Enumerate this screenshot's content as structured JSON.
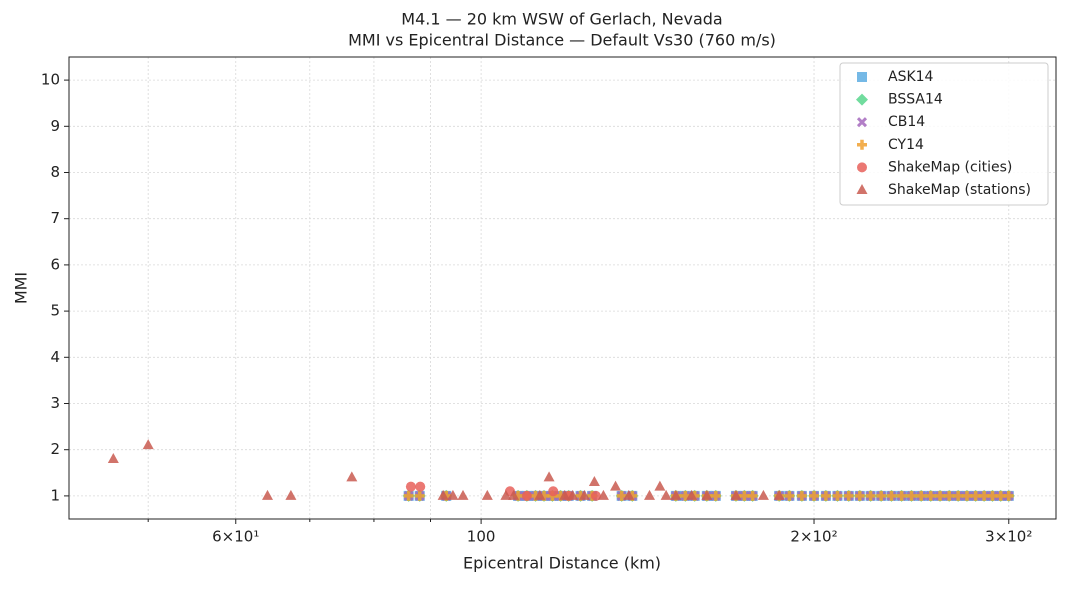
{
  "chart_data": {
    "type": "scatter",
    "title": "M4.1 — 20 km WSW of Gerlach, Nevada",
    "subtitle": "MMI vs Epicentral Distance — Default Vs30 (760 m/s)",
    "x_label": "Epicentral Distance (km)",
    "y_label": "MMI",
    "x_log": true,
    "grid": true,
    "legend": "upper right",
    "xlim": [
      42.4,
      331
    ],
    "ylim": [
      0.5,
      10.5
    ],
    "xticks": [
      {
        "value": 60,
        "label": "6×10¹"
      },
      100,
      {
        "value": 200,
        "label": "2×10²"
      },
      {
        "value": 300,
        "label": "3×10²"
      }
    ],
    "xminor": [
      50,
      70,
      80,
      90
    ],
    "yticks": [
      1,
      2,
      3,
      4,
      5,
      6,
      7,
      8,
      9,
      10
    ],
    "series": [
      {
        "name": "ASK14",
        "color": "#5dade2",
        "marker": "square",
        "x": [
          86,
          88,
          93,
          108,
          110,
          112,
          114,
          116,
          118,
          120,
          123,
          126,
          134,
          137,
          150,
          153,
          156,
          160,
          163,
          170,
          173,
          176,
          186,
          190,
          195,
          200,
          205,
          210,
          215,
          220,
          225,
          230,
          235,
          240,
          245,
          250,
          255,
          260,
          265,
          270,
          275,
          280,
          285,
          290,
          295,
          300
        ],
        "values": [
          1,
          1,
          1,
          1,
          1,
          1,
          1,
          1,
          1,
          1,
          1,
          1,
          1,
          1,
          1,
          1,
          1,
          1,
          1,
          1,
          1,
          1,
          1,
          1,
          1,
          1,
          1,
          1,
          1,
          1,
          1,
          1,
          1,
          1,
          1,
          1,
          1,
          1,
          1,
          1,
          1,
          1,
          1,
          1,
          1,
          1
        ]
      },
      {
        "name": "BSSA14",
        "color": "#58d68d",
        "marker": "diamond",
        "x": [
          86,
          88,
          93,
          108,
          110,
          112,
          114,
          116,
          118,
          120,
          123,
          126,
          134,
          137,
          150,
          153,
          156,
          160,
          163,
          170,
          173,
          176,
          186,
          190,
          195,
          200,
          205,
          210,
          215,
          220,
          225,
          230,
          235,
          240,
          245,
          250,
          255,
          260,
          265,
          270,
          275,
          280,
          285,
          290,
          295,
          300
        ],
        "values": [
          1,
          1,
          1,
          1,
          1,
          1,
          1,
          1,
          1,
          1,
          1,
          1,
          1,
          1,
          1,
          1,
          1,
          1,
          1,
          1,
          1,
          1,
          1,
          1,
          1,
          1,
          1,
          1,
          1,
          1,
          1,
          1,
          1,
          1,
          1,
          1,
          1,
          1,
          1,
          1,
          1,
          1,
          1,
          1,
          1,
          1
        ]
      },
      {
        "name": "CB14",
        "color": "#a569bd",
        "marker": "x",
        "x": [
          86,
          88,
          93,
          108,
          110,
          112,
          114,
          116,
          118,
          120,
          123,
          126,
          134,
          137,
          150,
          153,
          156,
          160,
          163,
          170,
          173,
          176,
          186,
          190,
          195,
          200,
          205,
          210,
          215,
          220,
          225,
          230,
          235,
          240,
          245,
          250,
          255,
          260,
          265,
          270,
          275,
          280,
          285,
          290,
          295,
          300
        ],
        "values": [
          1,
          1,
          1,
          1,
          1,
          1,
          1,
          1,
          1,
          1,
          1,
          1,
          1,
          1,
          1,
          1,
          1,
          1,
          1,
          1,
          1,
          1,
          1,
          1,
          1,
          1,
          1,
          1,
          1,
          1,
          1,
          1,
          1,
          1,
          1,
          1,
          1,
          1,
          1,
          1,
          1,
          1,
          1,
          1,
          1,
          1
        ]
      },
      {
        "name": "CY14",
        "color": "#f0a030",
        "marker": "plus",
        "x": [
          86,
          88,
          93,
          108,
          110,
          112,
          114,
          116,
          118,
          120,
          123,
          126,
          134,
          137,
          150,
          153,
          156,
          160,
          163,
          170,
          173,
          176,
          186,
          190,
          195,
          200,
          205,
          210,
          215,
          220,
          225,
          230,
          235,
          240,
          245,
          250,
          255,
          260,
          265,
          270,
          275,
          280,
          285,
          290,
          295,
          300
        ],
        "values": [
          1,
          1,
          1,
          1,
          1,
          1,
          1,
          1,
          1,
          1,
          1,
          1,
          1,
          1,
          1,
          1,
          1,
          1,
          1,
          1,
          1,
          1,
          1,
          1,
          1,
          1,
          1,
          1,
          1,
          1,
          1,
          1,
          1,
          1,
          1,
          1,
          1,
          1,
          1,
          1,
          1,
          1,
          1,
          1,
          1,
          1
        ]
      },
      {
        "name": "ShakeMap (cities)",
        "color": "#e8605a",
        "marker": "circle",
        "x": [
          86.4,
          88.1,
          106.2,
          116.2,
          110,
          120,
          127
        ],
        "values": [
          1.2,
          1.2,
          1.1,
          1.1,
          1,
          1,
          1
        ]
      },
      {
        "name": "ShakeMap (stations)",
        "color": "#c95a50",
        "marker": "triangle",
        "x": [
          46.5,
          50,
          64.1,
          67.3,
          76.4,
          92.4,
          94.3,
          96.3,
          101.3,
          105.3,
          107,
          113,
          115.2,
          119,
          121,
          124,
          126.6,
          129,
          132.3,
          136,
          142,
          145.1,
          147,
          150,
          155,
          160,
          170,
          180,
          186
        ],
        "values": [
          1.8,
          2.1,
          1,
          1,
          1.4,
          1,
          1,
          1,
          1,
          1,
          1,
          1,
          1.4,
          1,
          1,
          1,
          1.3,
          1,
          1.2,
          1,
          1,
          1.2,
          1,
          1,
          1,
          1,
          1,
          1,
          1
        ]
      }
    ]
  }
}
